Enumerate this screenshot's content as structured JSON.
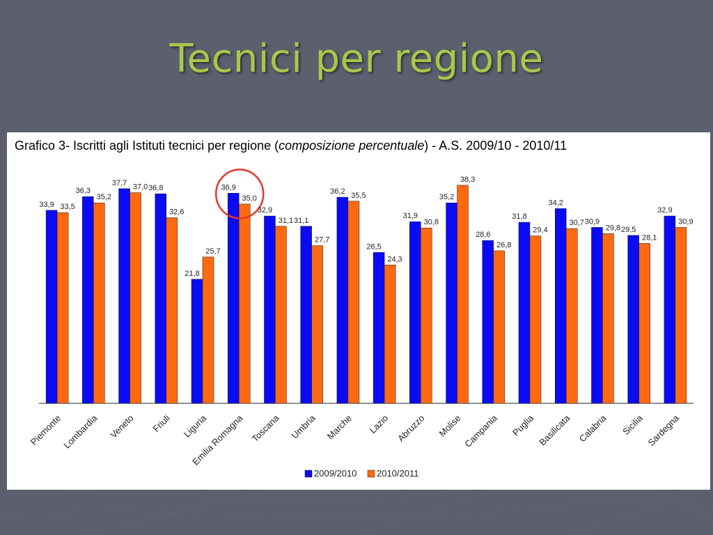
{
  "slide": {
    "title": "Tecnici per regione"
  },
  "caption": {
    "prefix": "Grafico 3- Iscritti agli Istituti tecnici per regione (",
    "emphasis": "composizione percentuale",
    "suffix": ") - A.S. 2009/10 - 2010/11"
  },
  "colors": {
    "background": "#5b5f6e",
    "title": "#a9c84a",
    "series_2009": "#0a0af5",
    "series_2010": "#ff6a10",
    "highlight_circle": "#e8352a"
  },
  "chart_data": {
    "type": "bar",
    "title": "Grafico 3- Iscritti agli Istituti tecnici per regione (composizione percentuale) - A.S. 2009/10 - 2010/11",
    "categories": [
      "Piemonte",
      "Lombardia",
      "Veneto",
      "Friuli",
      "Liguria",
      "Emilia Romagna",
      "Toscana",
      "Umbria",
      "Marche",
      "Lazio",
      "Abruzzo",
      "Molise",
      "Campania",
      "Puglia",
      "Basilicata",
      "Calabria",
      "Sicilia",
      "Sardegna"
    ],
    "series": [
      {
        "name": "2009/2010",
        "color": "#0a0af5",
        "values": [
          33.9,
          36.3,
          37.7,
          36.8,
          21.8,
          36.9,
          32.9,
          31.1,
          36.2,
          26.5,
          31.9,
          35.2,
          28.6,
          31.8,
          34.2,
          30.9,
          29.5,
          32.9
        ],
        "labels": [
          "33,9",
          "36,3",
          "37,7",
          "36,8",
          "21,8",
          "36,9",
          "32,9",
          "31,1",
          "36,2",
          "26,5",
          "31,9",
          "35,2",
          "28,6",
          "31,8",
          "34,2",
          "30,9",
          "29,5",
          "32,9"
        ]
      },
      {
        "name": "2010/2011",
        "color": "#ff6a10",
        "values": [
          33.5,
          35.2,
          37.0,
          32.6,
          25.7,
          35.0,
          31.1,
          27.7,
          35.5,
          24.3,
          30.8,
          38.3,
          26.8,
          29.4,
          30.7,
          29.8,
          28.1,
          30.9
        ],
        "labels": [
          "33,5",
          "35,2",
          "37,0",
          "32,6",
          "25,7",
          "35,0",
          "31,1",
          "27,7",
          "35,5",
          "24,3",
          "30,8",
          "38,3",
          "26,8",
          "29,4",
          "30,7",
          "29,8",
          "28,1",
          "30,9"
        ]
      }
    ],
    "ylim": [
      0,
      40
    ],
    "grid": false,
    "legend": "bottom-center",
    "highlighted_category": "Emilia Romagna"
  }
}
